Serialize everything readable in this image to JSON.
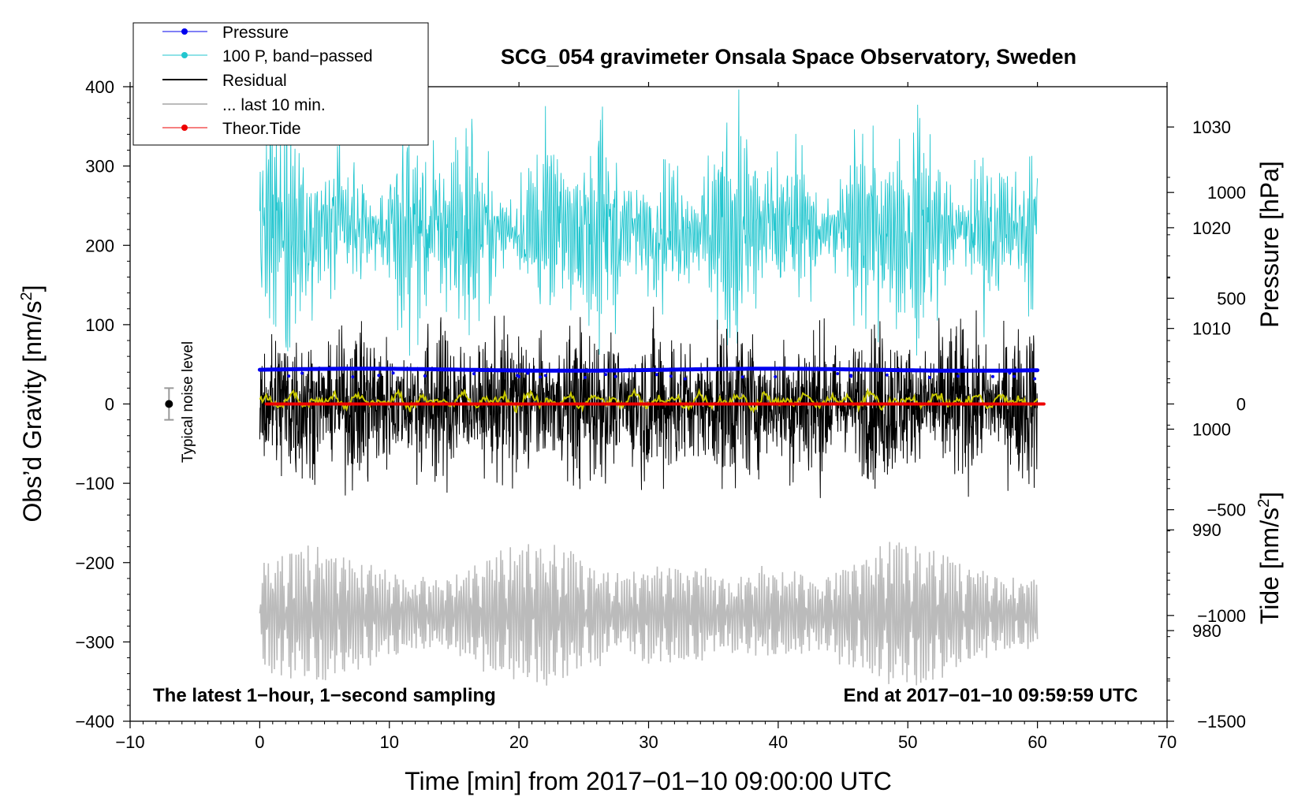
{
  "chart_data": {
    "type": "line",
    "title": "SCG_054 gravimeter Onsala Space Observatory, Sweden",
    "xlabel": "Time [min] from 2017−01−10 09:00:00 UTC",
    "ylabel_left_prefix": "Obs’d Gravity [nm/s",
    "ylabel_left_sup": "2",
    "ylabel_left_suffix": "]",
    "ylabel_pressure": "Pressure [hPa]",
    "ylabel_tide_prefix": "Tide [nm/s",
    "ylabel_tide_sup": "2",
    "ylabel_tide_suffix": "]",
    "xlim": [
      -10,
      70
    ],
    "ylim": [
      -400,
      400
    ],
    "pressure_lim": [
      971,
      1034
    ],
    "tide_lim": [
      -1500,
      1500
    ],
    "x_ticks": [
      "−10",
      "0",
      "10",
      "20",
      "30",
      "40",
      "50",
      "60",
      "70"
    ],
    "y_ticks": [
      "400",
      "300",
      "200",
      "100",
      "0",
      "−100",
      "−200",
      "−300",
      "−400"
    ],
    "pressure_ticks": [
      "1030",
      "1020",
      "1010",
      "1000",
      "990",
      "980"
    ],
    "tide_ticks": [
      "1000",
      "500",
      "0",
      "−500",
      "−1000",
      "−1500"
    ],
    "series": [
      {
        "name": "Pressure",
        "color": "#0000ee",
        "axis": "pressure",
        "mean": 1005.9,
        "x_range": [
          0,
          60
        ]
      },
      {
        "name": "100 P, band−passed",
        "color": "#22c6cf",
        "axis": "gravity",
        "mean": 220,
        "amplitude": 120,
        "x_range": [
          0,
          60
        ]
      },
      {
        "name": "Residual",
        "color": "#000000",
        "axis": "gravity",
        "mean": 0,
        "amplitude": 95,
        "x_range": [
          0,
          60
        ]
      },
      {
        "name": "... last 10 min.",
        "color": "#bbbbbb",
        "axis": "gravity",
        "mean": -265,
        "amplitude": 90,
        "x_range": [
          0,
          60
        ]
      },
      {
        "name": "Theor.Tide",
        "color": "#ee0000",
        "axis": "tide",
        "mean": 0,
        "x_range": [
          0.5,
          60.5
        ]
      }
    ],
    "smoothed_residual_color": "#c8c800",
    "noise_level": {
      "label": "Typical noise level",
      "x": -7,
      "center": 0,
      "half_width": 20
    },
    "note_left": "The latest 1−hour, 1−second sampling",
    "note_right": "End at 2017−01−10 09:59:59 UTC",
    "legend_position": "top-left"
  }
}
